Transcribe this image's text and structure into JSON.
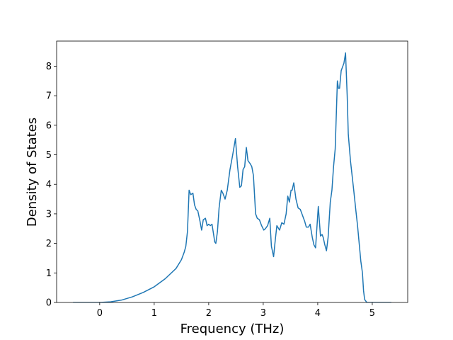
{
  "chart_data": {
    "type": "line",
    "xlabel": "Frequency (THz)",
    "ylabel": "Density of States",
    "x": [
      -0.49,
      0,
      0.2,
      0.4,
      0.6,
      0.8,
      1.0,
      1.2,
      1.4,
      1.5,
      1.55,
      1.58,
      1.61,
      1.64,
      1.67,
      1.71,
      1.74,
      1.77,
      1.8,
      1.84,
      1.87,
      1.9,
      1.94,
      1.97,
      2.0,
      2.03,
      2.06,
      2.09,
      2.11,
      2.13,
      2.16,
      2.19,
      2.23,
      2.26,
      2.3,
      2.34,
      2.39,
      2.44,
      2.49,
      2.53,
      2.57,
      2.6,
      2.63,
      2.66,
      2.69,
      2.72,
      2.76,
      2.79,
      2.82,
      2.86,
      2.89,
      2.93,
      2.97,
      3.01,
      3.04,
      3.08,
      3.12,
      3.15,
      3.19,
      3.22,
      3.25,
      3.3,
      3.34,
      3.38,
      3.42,
      3.45,
      3.48,
      3.51,
      3.53,
      3.56,
      3.6,
      3.64,
      3.68,
      3.72,
      3.76,
      3.79,
      3.83,
      3.86,
      3.9,
      3.93,
      3.96,
      4.01,
      4.05,
      4.08,
      4.1,
      4.13,
      4.16,
      4.19,
      4.23,
      4.26,
      4.29,
      4.32,
      4.36,
      4.38,
      4.4,
      4.43,
      4.45,
      4.48,
      4.51,
      4.54,
      4.56,
      4.6,
      4.63,
      4.66,
      4.7,
      4.73,
      4.76,
      4.79,
      4.82,
      4.84,
      4.86,
      4.9,
      5.35
    ],
    "values": [
      0,
      0,
      0.02,
      0.08,
      0.19,
      0.34,
      0.53,
      0.8,
      1.15,
      1.45,
      1.7,
      1.9,
      2.4,
      3.8,
      3.65,
      3.7,
      3.3,
      3.15,
      3.1,
      2.75,
      2.45,
      2.8,
      2.85,
      2.6,
      2.65,
      2.6,
      2.65,
      2.3,
      2.05,
      2.0,
      2.4,
      3.2,
      3.8,
      3.7,
      3.5,
      3.8,
      4.5,
      5.0,
      5.55,
      4.6,
      3.9,
      3.95,
      4.5,
      4.6,
      5.25,
      4.8,
      4.7,
      4.6,
      4.3,
      3.0,
      2.85,
      2.8,
      2.6,
      2.45,
      2.5,
      2.6,
      2.85,
      1.9,
      1.55,
      2.1,
      2.6,
      2.45,
      2.7,
      2.65,
      3.0,
      3.6,
      3.4,
      3.8,
      3.8,
      4.05,
      3.5,
      3.2,
      3.15,
      2.95,
      2.75,
      2.55,
      2.55,
      2.65,
      2.2,
      1.95,
      1.85,
      3.25,
      2.25,
      2.3,
      2.2,
      1.95,
      1.75,
      2.2,
      3.4,
      3.8,
      4.6,
      5.2,
      7.5,
      7.25,
      7.25,
      7.85,
      7.95,
      8.1,
      8.45,
      7.0,
      5.7,
      4.8,
      4.3,
      3.8,
      3.1,
      2.6,
      2.0,
      1.4,
      1.0,
      0.4,
      0.1,
      0,
      0
    ],
    "color": "#1f77b4",
    "xlim": [
      -0.79,
      5.65
    ],
    "xticks": [
      0,
      1,
      2,
      3,
      4,
      5
    ],
    "ylim": [
      0,
      8.85
    ],
    "yticks": [
      0,
      1,
      2,
      3,
      4,
      5,
      6,
      7,
      8
    ]
  }
}
